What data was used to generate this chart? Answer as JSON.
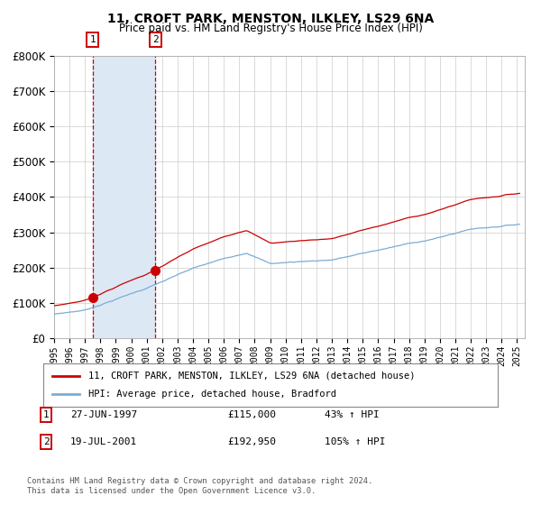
{
  "title1": "11, CROFT PARK, MENSTON, ILKLEY, LS29 6NA",
  "title2": "Price paid vs. HM Land Registry's House Price Index (HPI)",
  "ylim": [
    0,
    800000
  ],
  "yticks": [
    0,
    100000,
    200000,
    300000,
    400000,
    500000,
    600000,
    700000,
    800000
  ],
  "xlim_start": 1995.0,
  "xlim_end": 2025.5,
  "transaction1_date": 1997.49,
  "transaction1_price": 115000,
  "transaction2_date": 2001.55,
  "transaction2_price": 192950,
  "sale1_label": "27-JUN-1997",
  "sale1_price_str": "£115,000",
  "sale1_hpi": "43% ↑ HPI",
  "sale2_label": "19-JUL-2001",
  "sale2_price_str": "£192,950",
  "sale2_hpi": "105% ↑ HPI",
  "legend_line1": "11, CROFT PARK, MENSTON, ILKLEY, LS29 6NA (detached house)",
  "legend_line2": "HPI: Average price, detached house, Bradford",
  "footer": "Contains HM Land Registry data © Crown copyright and database right 2024.\nThis data is licensed under the Open Government Licence v3.0.",
  "red_color": "#cc0000",
  "blue_color": "#7aacd6",
  "shade_color": "#dde8f5",
  "grid_color": "#cccccc",
  "bg_color": "#ffffff"
}
